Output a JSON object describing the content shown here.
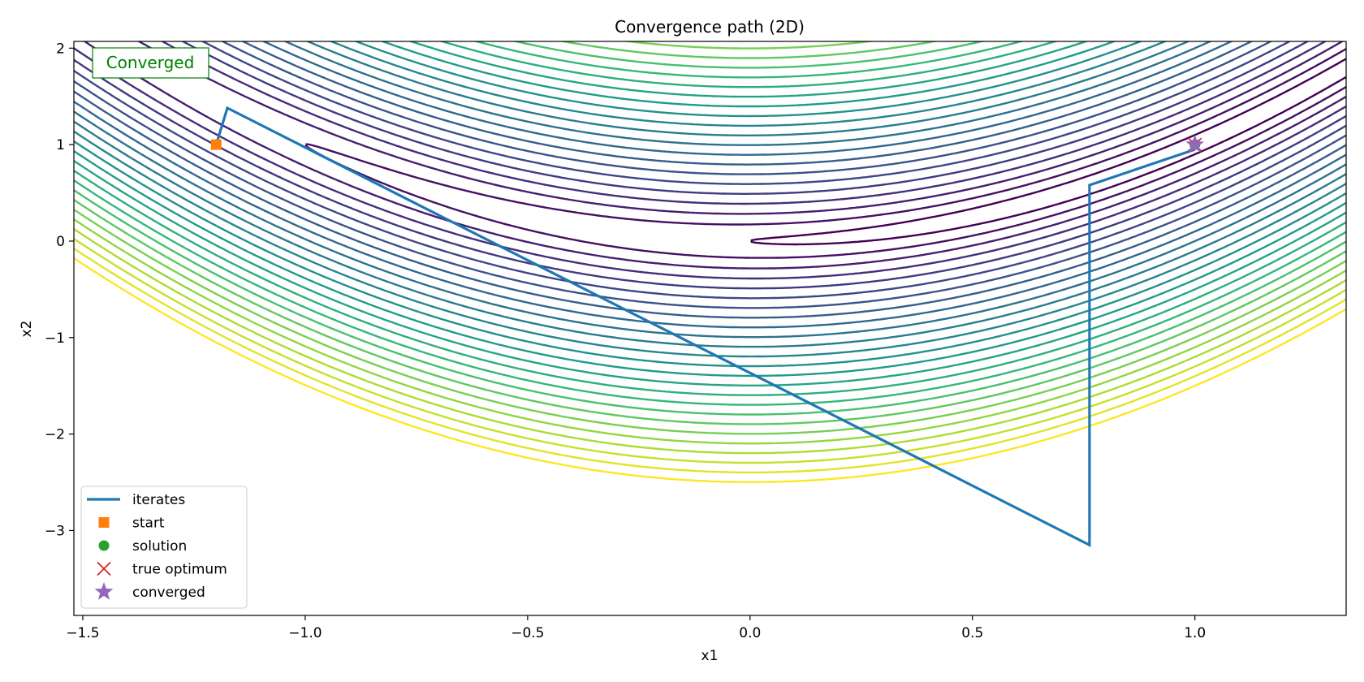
{
  "chart_data": {
    "type": "line",
    "title": "Convergence path (2D)",
    "xlabel": "x1",
    "ylabel": "x2",
    "xlim": [
      -1.52,
      1.34
    ],
    "ylim": [
      -3.88,
      2.07
    ],
    "x_ticks": [
      -1.5,
      -1.0,
      -0.5,
      0.0,
      0.5,
      1.0
    ],
    "x_tick_labels": [
      "−1.5",
      "−1.0",
      "−0.5",
      "0.0",
      "0.5",
      "1.0"
    ],
    "y_ticks": [
      -3,
      -2,
      -1,
      0,
      1,
      2
    ],
    "y_tick_labels": [
      "−3",
      "−2",
      "−1",
      "0",
      "1",
      "2"
    ],
    "grid": false,
    "legend_position": "lower-left",
    "status": {
      "label": "Converged",
      "color": "#008000"
    },
    "contour": {
      "function": "rosenbrock",
      "levels": [
        1,
        4,
        9,
        16,
        25,
        36,
        49,
        64,
        81,
        100,
        121,
        144,
        169,
        196,
        225,
        256,
        289,
        324,
        361,
        400,
        441,
        484,
        529,
        576,
        625
      ],
      "colormap": "viridis"
    },
    "series": [
      {
        "name": "iterates",
        "color": "#1f77b4",
        "x": [
          -1.2,
          -1.175,
          0.763,
          0.763,
          1.0
        ],
        "y": [
          1.0,
          1.38,
          -3.15,
          0.58,
          0.95
        ]
      }
    ],
    "markers": [
      {
        "name": "start",
        "shape": "square",
        "color": "#ff7f0e",
        "x": -1.2,
        "y": 1.0
      },
      {
        "name": "solution",
        "shape": "circle",
        "color": "#2ca02c",
        "x": 1.0,
        "y": 1.0
      },
      {
        "name": "true optimum",
        "shape": "x",
        "color": "#d62728",
        "x": 1.0,
        "y": 1.0
      },
      {
        "name": "converged",
        "shape": "star",
        "color": "#9467bd",
        "x": 1.0,
        "y": 1.0
      }
    ],
    "legend": [
      {
        "label": "iterates",
        "shape": "line",
        "color": "#1f77b4"
      },
      {
        "label": "start",
        "shape": "square",
        "color": "#ff7f0e"
      },
      {
        "label": "solution",
        "shape": "circle",
        "color": "#2ca02c"
      },
      {
        "label": "true optimum",
        "shape": "x",
        "color": "#d62728"
      },
      {
        "label": "converged",
        "shape": "star",
        "color": "#9467bd"
      }
    ]
  }
}
